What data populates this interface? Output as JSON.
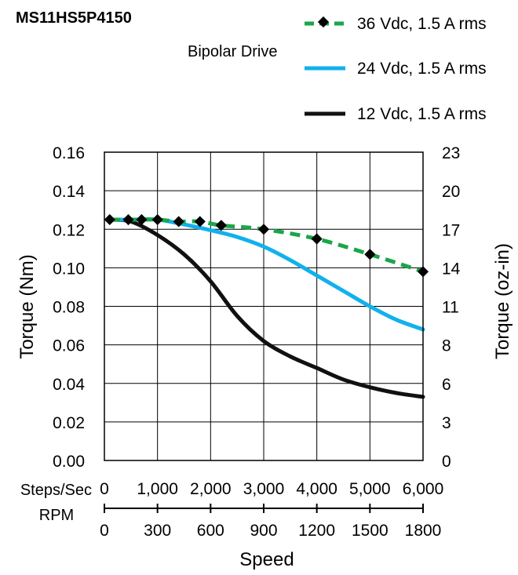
{
  "chart_data": {
    "type": "line",
    "title": "MS11HS5P4150",
    "subtitle": "Bipolar Drive",
    "xlabel": "Speed",
    "ylabel_left": "Torque (Nm)",
    "ylabel_right": "Torque (oz-in)",
    "x_axis_rows": [
      {
        "label": "Steps/Sec",
        "ticks": [
          "0",
          "1,000",
          "2,000",
          "3,000",
          "4,000",
          "5,000",
          "6,000"
        ]
      },
      {
        "label": "RPM",
        "ticks": [
          "0",
          "300",
          "600",
          "900",
          "1200",
          "1500",
          "1800"
        ]
      }
    ],
    "xlim": [
      0,
      6000
    ],
    "ylim": [
      0,
      0.16
    ],
    "y_ticks_left": [
      "0.00",
      "0.02",
      "0.04",
      "0.06",
      "0.08",
      "0.10",
      "0.12",
      "0.14",
      "0.16"
    ],
    "y_ticks_right": [
      "0",
      "3",
      "6",
      "8",
      "11",
      "14",
      "17",
      "20",
      "23"
    ],
    "grid": true,
    "legend_position": "top-right",
    "series": [
      {
        "name": "36 Vdc, 1.5 A rms",
        "color": "#1aa64a",
        "dashed": true,
        "markers": true,
        "x": [
          100,
          450,
          700,
          1000,
          1400,
          1800,
          2200,
          3000,
          4000,
          5000,
          6000
        ],
        "y": [
          0.125,
          0.125,
          0.125,
          0.125,
          0.124,
          0.124,
          0.122,
          0.12,
          0.115,
          0.107,
          0.098
        ]
      },
      {
        "name": "24 Vdc, 1.5 A rms",
        "color": "#11b1ec",
        "dashed": false,
        "markers": false,
        "x": [
          100,
          500,
          1000,
          1500,
          2000,
          2500,
          3000,
          3500,
          4000,
          4500,
          5000,
          5500,
          6000
        ],
        "y": [
          0.125,
          0.125,
          0.125,
          0.1225,
          0.1195,
          0.116,
          0.111,
          0.104,
          0.096,
          0.088,
          0.08,
          0.073,
          0.068
        ]
      },
      {
        "name": "12 Vdc, 1.5 A rms",
        "color": "#111111",
        "dashed": false,
        "markers": false,
        "x": [
          100,
          500,
          1000,
          1500,
          2000,
          2500,
          3000,
          3500,
          4000,
          4500,
          5000,
          5500,
          6000
        ],
        "y": [
          0.125,
          0.124,
          0.117,
          0.107,
          0.093,
          0.075,
          0.062,
          0.054,
          0.048,
          0.042,
          0.038,
          0.035,
          0.033
        ]
      }
    ]
  }
}
